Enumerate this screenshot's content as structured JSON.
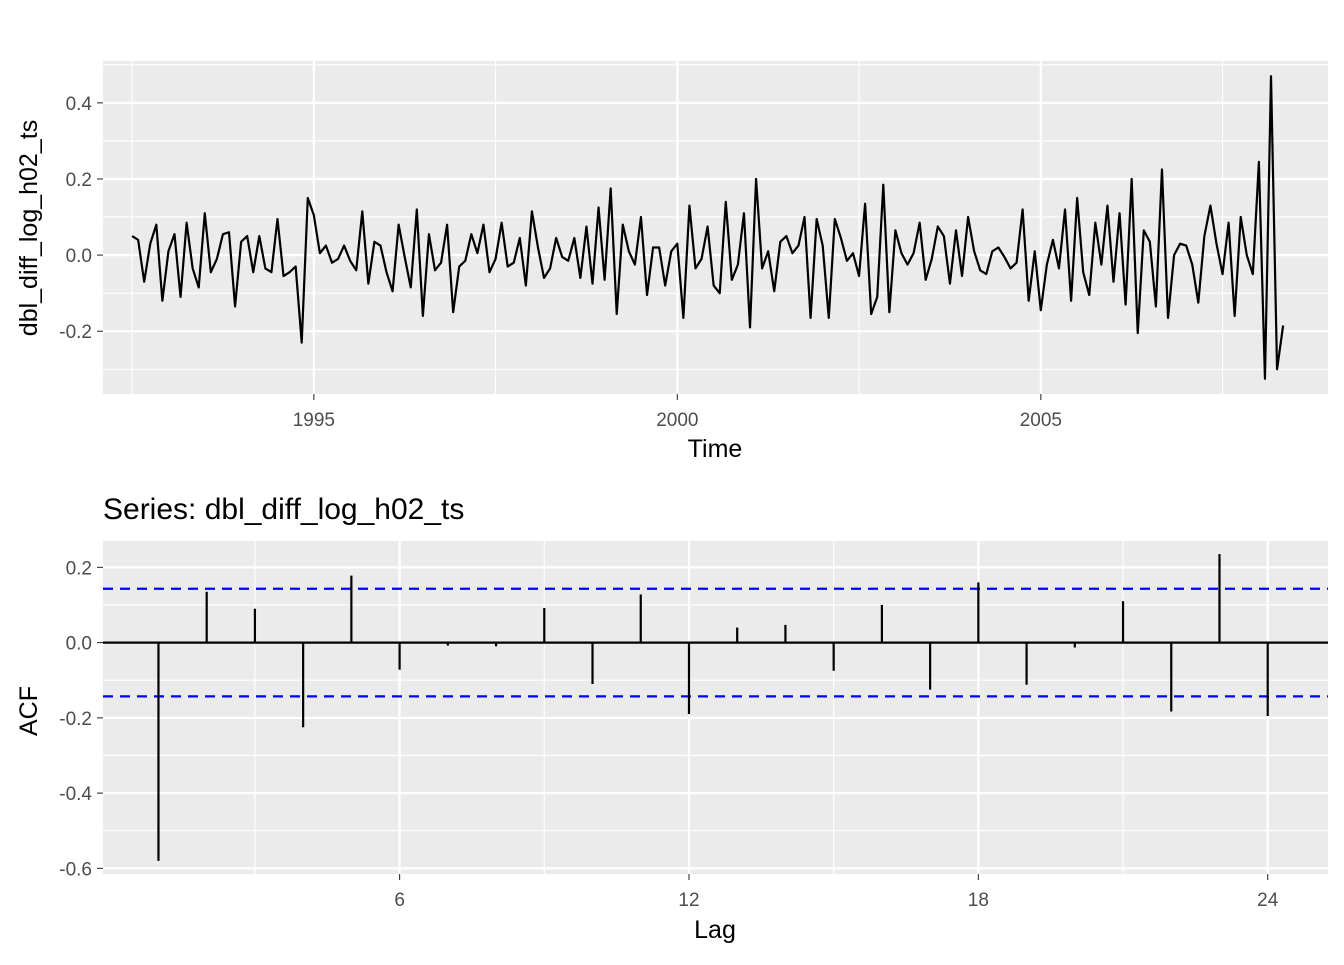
{
  "chart_data": [
    {
      "type": "line",
      "title": "",
      "xlabel": "Time",
      "ylabel": "dbl_diff_log_h02_ts",
      "xlim": [
        1992.1,
        2008.95
      ],
      "ylim": [
        -0.365,
        0.51
      ],
      "x_ticks": [
        1995,
        2000,
        2005
      ],
      "x_tick_labels": [
        "1995",
        "2000",
        "2005"
      ],
      "y_ticks": [
        -0.2,
        0.0,
        0.2,
        0.4
      ],
      "y_tick_labels": [
        "-0.2",
        "0.0",
        "0.2",
        "0.4"
      ],
      "grid": true,
      "series": [
        {
          "x_start": 1992.5,
          "x_step": 0.08333,
          "values": [
            0.05,
            0.04,
            -0.07,
            0.03,
            0.08,
            -0.12,
            0.01,
            0.055,
            -0.11,
            0.085,
            -0.035,
            -0.085,
            0.11,
            -0.045,
            -0.01,
            0.055,
            0.06,
            -0.135,
            0.035,
            0.05,
            -0.045,
            0.05,
            -0.035,
            -0.045,
            0.095,
            -0.055,
            -0.045,
            -0.03,
            -0.23,
            0.15,
            0.105,
            0.005,
            0.025,
            -0.02,
            -0.01,
            0.025,
            -0.015,
            -0.04,
            0.115,
            -0.075,
            0.035,
            0.025,
            -0.045,
            -0.095,
            0.08,
            -0.005,
            -0.085,
            0.12,
            -0.16,
            0.055,
            -0.04,
            -0.02,
            0.08,
            -0.15,
            -0.03,
            -0.015,
            0.055,
            0.005,
            0.08,
            -0.045,
            -0.01,
            0.085,
            -0.03,
            -0.02,
            0.045,
            -0.08,
            0.115,
            0.02,
            -0.06,
            -0.035,
            0.045,
            -0.005,
            -0.015,
            0.045,
            -0.06,
            0.075,
            -0.075,
            0.125,
            -0.065,
            0.175,
            -0.155,
            0.08,
            0.01,
            -0.025,
            0.1,
            -0.105,
            0.02,
            0.02,
            -0.08,
            0.01,
            0.03,
            -0.165,
            0.13,
            -0.035,
            -0.01,
            0.075,
            -0.08,
            -0.1,
            0.14,
            -0.065,
            -0.025,
            0.11,
            -0.19,
            0.2,
            -0.035,
            0.01,
            -0.095,
            0.035,
            0.05,
            0.005,
            0.025,
            0.1,
            -0.165,
            0.095,
            0.025,
            -0.165,
            0.095,
            0.045,
            -0.015,
            0.005,
            -0.055,
            0.135,
            -0.155,
            -0.11,
            0.185,
            -0.15,
            0.065,
            0.005,
            -0.025,
            0.005,
            0.085,
            -0.065,
            -0.01,
            0.075,
            0.05,
            -0.075,
            0.065,
            -0.055,
            0.1,
            0.01,
            -0.04,
            -0.05,
            0.01,
            0.02,
            -0.005,
            -0.035,
            -0.02,
            0.12,
            -0.12,
            0.01,
            -0.145,
            -0.025,
            0.04,
            -0.035,
            0.12,
            -0.12,
            0.15,
            -0.045,
            -0.105,
            0.085,
            -0.025,
            0.13,
            -0.07,
            0.11,
            -0.13,
            0.2,
            -0.205,
            0.065,
            0.035,
            -0.135,
            0.225,
            -0.165,
            0.0,
            0.03,
            0.025,
            -0.025,
            -0.125,
            0.05,
            0.13,
            0.03,
            -0.05,
            0.085,
            -0.16,
            0.1,
            0.0,
            -0.05,
            0.245,
            -0.325,
            0.47,
            -0.3,
            -0.185
          ]
        }
      ]
    },
    {
      "type": "bar",
      "title": "Series: dbl_diff_log_h02_ts",
      "xlabel": "Lag",
      "ylabel": "ACF",
      "xlim": [
        -0.15,
        25.25
      ],
      "ylim": [
        -0.615,
        0.27
      ],
      "x_ticks": [
        6,
        12,
        18,
        24
      ],
      "x_tick_labels": [
        "6",
        "12",
        "18",
        "24"
      ],
      "y_ticks": [
        -0.6,
        -0.4,
        -0.2,
        0.0,
        0.2
      ],
      "y_tick_labels": [
        "-0.6",
        "-0.4",
        "-0.2",
        "0.0",
        "0.2"
      ],
      "grid": true,
      "confidence_limits": [
        0.143,
        -0.143
      ],
      "ci_color": "#0000ff",
      "lags": [
        1,
        2,
        3,
        4,
        5,
        6,
        7,
        8,
        9,
        10,
        11,
        12,
        13,
        14,
        15,
        16,
        17,
        18,
        19,
        20,
        21,
        22,
        23,
        24
      ],
      "values": [
        -0.58,
        0.135,
        0.09,
        -0.225,
        0.178,
        -0.072,
        -0.008,
        -0.01,
        0.092,
        -0.11,
        0.128,
        -0.19,
        0.04,
        0.047,
        -0.075,
        0.1,
        -0.125,
        0.16,
        -0.112,
        -0.013,
        0.11,
        -0.183,
        0.235,
        -0.195
      ]
    }
  ]
}
